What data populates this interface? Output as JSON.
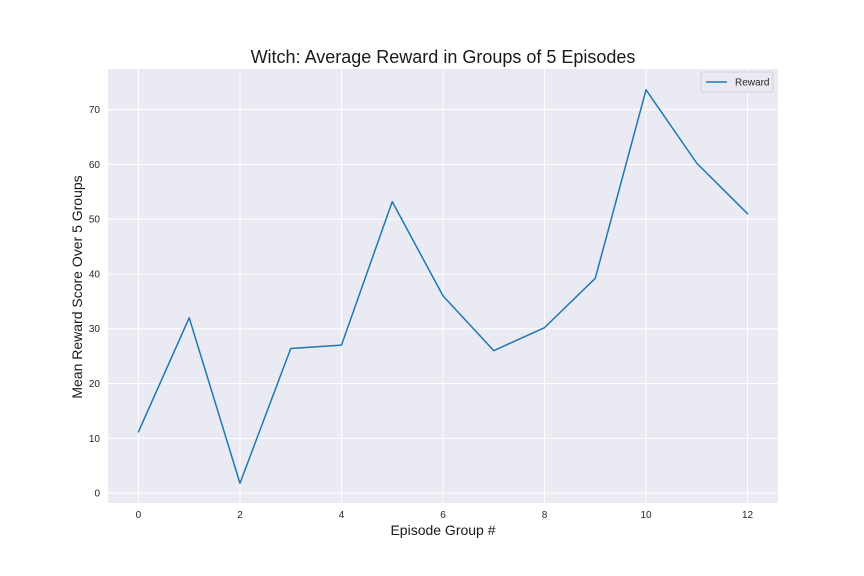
{
  "chart_data": {
    "type": "line",
    "title": "Witch: Average Reward in Groups of 5 Episodes",
    "xlabel": "Episode Group #",
    "ylabel": "Mean Reward Score Over 5 Groups",
    "x": [
      0,
      1,
      2,
      3,
      4,
      5,
      6,
      7,
      8,
      9,
      10,
      11,
      12
    ],
    "series": [
      {
        "name": "Reward",
        "values": [
          11.2,
          32.0,
          1.8,
          26.4,
          27.0,
          53.2,
          36.0,
          26.0,
          30.2,
          39.2,
          73.6,
          60.2,
          51.0
        ],
        "color": "#1f77b4"
      }
    ],
    "xticks": [
      "0",
      "2",
      "4",
      "6",
      "8",
      "10",
      "12"
    ],
    "yticks": [
      "0",
      "10",
      "20",
      "30",
      "40",
      "50",
      "60",
      "70"
    ],
    "xlim": [
      -0.6,
      12.6
    ],
    "ylim": [
      -1.8,
      77.4
    ],
    "grid": true,
    "legend_position": "top-right",
    "background_color": "#eaeaf2",
    "grid_color": "#ffffff"
  }
}
